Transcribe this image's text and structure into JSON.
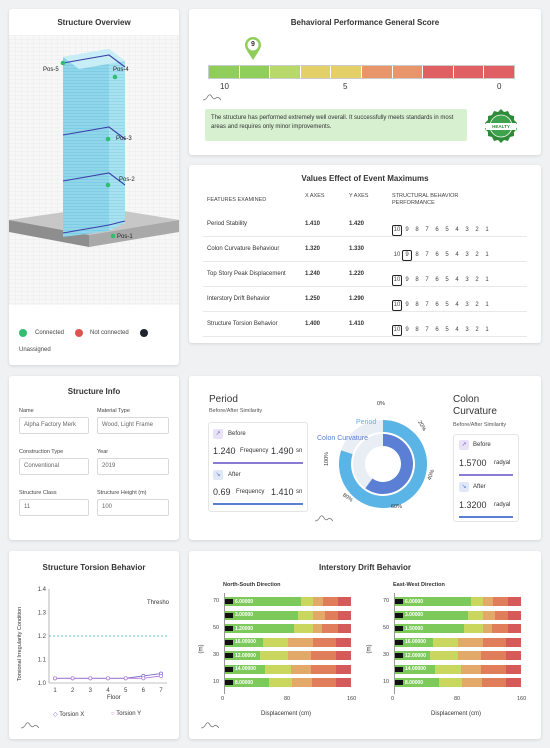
{
  "structure_overview": {
    "title": "Structure Overview",
    "positions": [
      "Pos-5",
      "Pos-4",
      "Pos-3",
      "Pos-2",
      "Pos-1"
    ],
    "legend": {
      "connected": "Connected",
      "not_connected": "Not connected",
      "unassigned": "Unassigned"
    },
    "colors": {
      "connected": "#2fbf71",
      "not_connected": "#e05252",
      "unassigned": "#1f2430"
    }
  },
  "performance": {
    "title": "Behavioral Performance General Score",
    "score": "9",
    "scale_labels": [
      "10",
      "5",
      "0"
    ],
    "message": "The structure has performed extremely well overall. It successfully meets standards in most areas and requires only minor improvements.",
    "badge": "HEALTY",
    "colors": {
      "green": "#8fce5a",
      "light_green": "#b8d86a",
      "yellow": "#e3d068",
      "orange": "#e8956a",
      "red": "#e05f63",
      "pin": "#8fce5a"
    }
  },
  "values_effect": {
    "title": "Values Effect of Event Maximums",
    "headers": {
      "feature": "FEATURES EXAMINED",
      "x": "X AXES",
      "y": "Y AXES",
      "perf": "STRUCTURAL BEHAVIOR PERFORMANCE"
    },
    "scale": [
      "10",
      "9",
      "8",
      "7",
      "6",
      "5",
      "4",
      "3",
      "2",
      "1"
    ],
    "rows": [
      {
        "feature": "Period Stability",
        "x": "1.410",
        "y": "1.420",
        "selected": "10"
      },
      {
        "feature": "Colon Curvature Behaviour",
        "x": "1.320",
        "y": "1.330",
        "selected": "9"
      },
      {
        "feature": "Top Story Peak Displacement",
        "x": "1.240",
        "y": "1.220",
        "selected": "10"
      },
      {
        "feature": "Interstory Drift Behavior",
        "x": "1.250",
        "y": "1.290",
        "selected": "10"
      },
      {
        "feature": "Structure Torsion Behavior",
        "x": "1.400",
        "y": "1.410",
        "selected": "10"
      }
    ]
  },
  "structure_info": {
    "title": "Structure Info",
    "fields": {
      "name": {
        "label": "Name",
        "value": "Alpha Factory Merk"
      },
      "material": {
        "label": "Material Type",
        "value": "Wood, Light Frame"
      },
      "construction": {
        "label": "Construction Type",
        "value": "Conventional"
      },
      "year": {
        "label": "Year",
        "value": "2019"
      },
      "class": {
        "label": "Structure Class",
        "value": "11"
      },
      "height": {
        "label": "Structure Height (m)",
        "value": "100"
      }
    }
  },
  "period": {
    "title": "Period",
    "subtitle": "Before/After Similarity",
    "before_label": "Before",
    "before_value": "1.240",
    "before_freq_label": "Frequency",
    "before_freq": "1.490",
    "before_unit": "sn",
    "after_label": "After",
    "after_value": "0.69",
    "after_freq_label": "Frequency",
    "after_freq": "1.410",
    "after_unit": "sn",
    "donut_labels": {
      "period": "Period",
      "colon": "Colon Curvature"
    },
    "percent_labels": [
      "0%",
      "20%",
      "40%",
      "60%",
      "80%",
      "100%"
    ],
    "period_pct": 0.8,
    "colon_pct": 0.6
  },
  "colon": {
    "title": "Colon Curvature",
    "subtitle": "Before/After Similarity",
    "before_label": "Before",
    "before_value": "1.5700",
    "before_unit": "radyal",
    "after_label": "After",
    "after_value": "1.3200",
    "after_unit": "radyal"
  },
  "torsion": {
    "title": "Structure Torsion Behavior",
    "ylabel": "Torsional Irregularity Condition",
    "xlabel": "Floor",
    "threshold_label": "Thresho",
    "legend_x": "Torsion X",
    "legend_y": "Torsion Y"
  },
  "drift": {
    "title": "Interstory Drift Behavior",
    "ns_label": "North-South Direction",
    "ew_label": "East-West Direction",
    "ylabel": "(m)",
    "xlabel": "Displacement (cm)",
    "y_ticks": [
      "70",
      "50",
      "30",
      "10"
    ],
    "x_ticks": [
      "0",
      "80",
      "160"
    ],
    "ns_values": [
      "6.00000",
      "3.00000",
      "1.20000",
      "16.00000",
      "12.00000",
      "14.00000",
      "8.00000"
    ],
    "ew_values": [
      "6.00000",
      "3.00000",
      "1.50000",
      "16.00000",
      "12.00000",
      "14.00000",
      "8.00000"
    ]
  },
  "chart_data": [
    {
      "type": "line",
      "title": "Structure Torsion Behavior",
      "xlabel": "Floor",
      "ylabel": "Torsional Irregularity Condition",
      "ylim": [
        1.0,
        1.4
      ],
      "x": [
        1,
        2,
        3,
        4,
        5,
        6,
        7
      ],
      "threshold": 1.2,
      "series": [
        {
          "name": "Torsion X",
          "values": [
            1.02,
            1.02,
            1.02,
            1.02,
            1.02,
            1.03,
            1.04
          ]
        },
        {
          "name": "Torsion Y",
          "values": [
            1.02,
            1.02,
            1.02,
            1.02,
            1.02,
            1.02,
            1.03
          ]
        }
      ]
    }
  ]
}
